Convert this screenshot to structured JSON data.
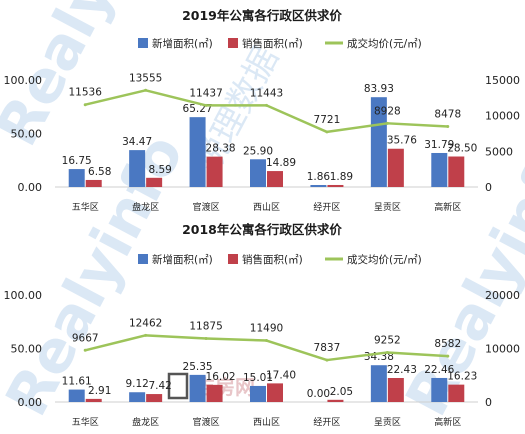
{
  "colors": {
    "new_area": "#4A78C2",
    "sold_area": "#C0404A",
    "avg_price": "#9DC45A",
    "axis": "#cfcfcf",
    "watermark_text": "#dbe8f5",
    "watermark_logo": "#d9a0a4"
  },
  "watermark": {
    "brand_text": "Realyinfo",
    "cn_text": "锐理数据",
    "logo_text": "吉房网"
  },
  "chart_data": [
    {
      "type": "bar",
      "title": "2019年公寓各行政区供求价",
      "categories": [
        "五华区",
        "盘龙区",
        "官渡区",
        "西山区",
        "经开区",
        "呈贡区",
        "高新区"
      ],
      "series": [
        {
          "name": "新增面积(㎡)",
          "kind": "bar",
          "axis": "left",
          "values": [
            16.75,
            34.47,
            65.27,
            25.9,
            1.86,
            83.93,
            31.79
          ]
        },
        {
          "name": "销售面积(㎡)",
          "kind": "bar",
          "axis": "left",
          "values": [
            6.58,
            8.59,
            28.38,
            14.89,
            1.89,
            35.76,
            28.5
          ]
        },
        {
          "name": "成交均价(元/㎡)",
          "kind": "line",
          "axis": "right",
          "values": [
            11536,
            13555,
            11437,
            11443,
            7721,
            8928,
            8478
          ]
        }
      ],
      "value_labels": {
        "bar_a": [
          "16.75",
          "34.47",
          "65.27",
          "25.90",
          "1.86",
          "83.93",
          "31.79"
        ],
        "bar_b": [
          "6.58",
          "8.59",
          "28.38",
          "14.89",
          "1.89",
          "35.76",
          "28.50"
        ],
        "line": [
          "11536",
          "13555",
          "11437",
          "11443",
          "7721",
          "8928",
          "8478"
        ]
      },
      "y_left": {
        "min": 0,
        "max": 100,
        "ticks": [
          0,
          50,
          100
        ],
        "tick_labels": [
          "0.00",
          "50.00",
          "100.00"
        ]
      },
      "y_right": {
        "min": 0,
        "max": 15000,
        "ticks": [
          0,
          5000,
          10000,
          15000
        ],
        "tick_labels": [
          "0",
          "5000",
          "10000",
          "15000"
        ]
      },
      "legend_position": "top-center",
      "grid": false
    },
    {
      "type": "bar",
      "title": "2018年公寓各行政区供求价",
      "categories": [
        "五华区",
        "盘龙区",
        "官渡区",
        "西山区",
        "经开区",
        "呈贡区",
        "高新区"
      ],
      "series": [
        {
          "name": "新增面积(㎡)",
          "kind": "bar",
          "axis": "left",
          "values": [
            11.61,
            9.12,
            25.35,
            15.01,
            0.0,
            34.38,
            22.46
          ]
        },
        {
          "name": "销售面积(㎡)",
          "kind": "bar",
          "axis": "left",
          "values": [
            2.91,
            7.42,
            16.02,
            17.4,
            2.05,
            22.43,
            16.23
          ]
        },
        {
          "name": "成交均价(元/㎡)",
          "kind": "line",
          "axis": "right",
          "values": [
            9667,
            12462,
            11875,
            11490,
            7837,
            9252,
            8582
          ]
        }
      ],
      "value_labels": {
        "bar_a": [
          "11.61",
          "9.12",
          "25.35",
          "15.01",
          "0.00",
          "34.38",
          "22.46"
        ],
        "bar_b": [
          "2.91",
          "7.42",
          "16.02",
          "17.40",
          "2.05",
          "22.43",
          "16.23"
        ],
        "line": [
          "9667",
          "12462",
          "11875",
          "11490",
          "7837",
          "9252",
          "8582"
        ]
      },
      "y_left": {
        "min": 0,
        "max": 100,
        "ticks": [
          0,
          50,
          100
        ],
        "tick_labels": [
          "0.00",
          "50.00",
          "100.00"
        ]
      },
      "y_right": {
        "min": 0,
        "max": 20000,
        "ticks": [
          0,
          10000,
          20000
        ],
        "tick_labels": [
          "0",
          "10000",
          "20000"
        ]
      },
      "legend_position": "top-center",
      "grid": false
    }
  ]
}
